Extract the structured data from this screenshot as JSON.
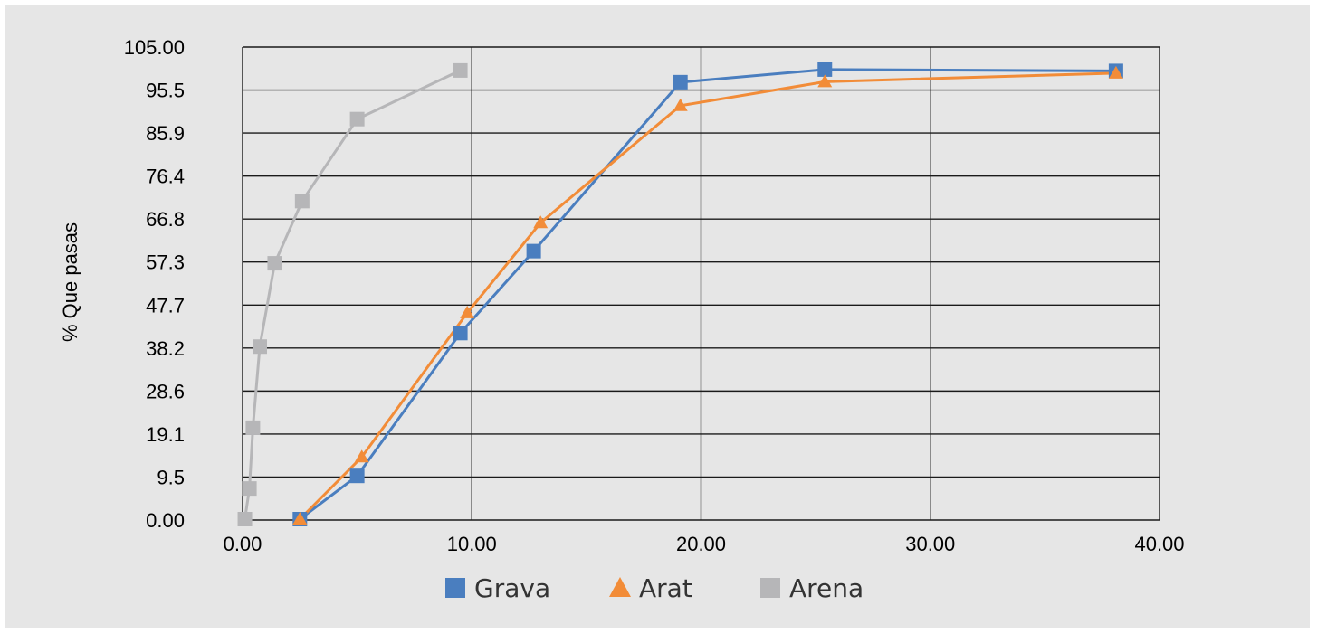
{
  "chart_data": {
    "type": "line",
    "ylabel": "% Que pasas",
    "xlabel": "",
    "xlim": [
      0,
      40
    ],
    "ylim": [
      0,
      105
    ],
    "x_ticks": [
      "0.00",
      "10.00",
      "20.00",
      "30.00",
      "40.00"
    ],
    "y_ticks": [
      "0.00",
      "9.5",
      "19.1",
      "28.6",
      "38.2",
      "47.7",
      "57.3",
      "66.8",
      "76.4",
      "85.9",
      "95.5",
      "105.00"
    ],
    "grid": true,
    "legend": "bottom",
    "series": [
      {
        "name": "Grava",
        "color": "#4a7ebf",
        "marker": "square",
        "x": [
          2.5,
          5.0,
          9.5,
          12.7,
          19.1,
          25.4,
          38.1
        ],
        "y": [
          0.2,
          9.8,
          41.5,
          59.7,
          97.2,
          100.0,
          99.7
        ]
      },
      {
        "name": "Arat",
        "color": "#f28c38",
        "marker": "triangle",
        "x": [
          2.5,
          5.2,
          9.8,
          13.0,
          19.1,
          25.4,
          38.1
        ],
        "y": [
          0.2,
          14.0,
          46.0,
          66.0,
          92.0,
          97.3,
          99.2
        ]
      },
      {
        "name": "Arena",
        "color": "#b6b6b8",
        "marker": "square",
        "x": [
          0.1,
          0.3,
          0.45,
          0.75,
          1.4,
          2.6,
          5.0,
          9.5
        ],
        "y": [
          0.2,
          7.0,
          20.5,
          38.5,
          57.0,
          70.8,
          89.0,
          99.8
        ]
      }
    ]
  }
}
